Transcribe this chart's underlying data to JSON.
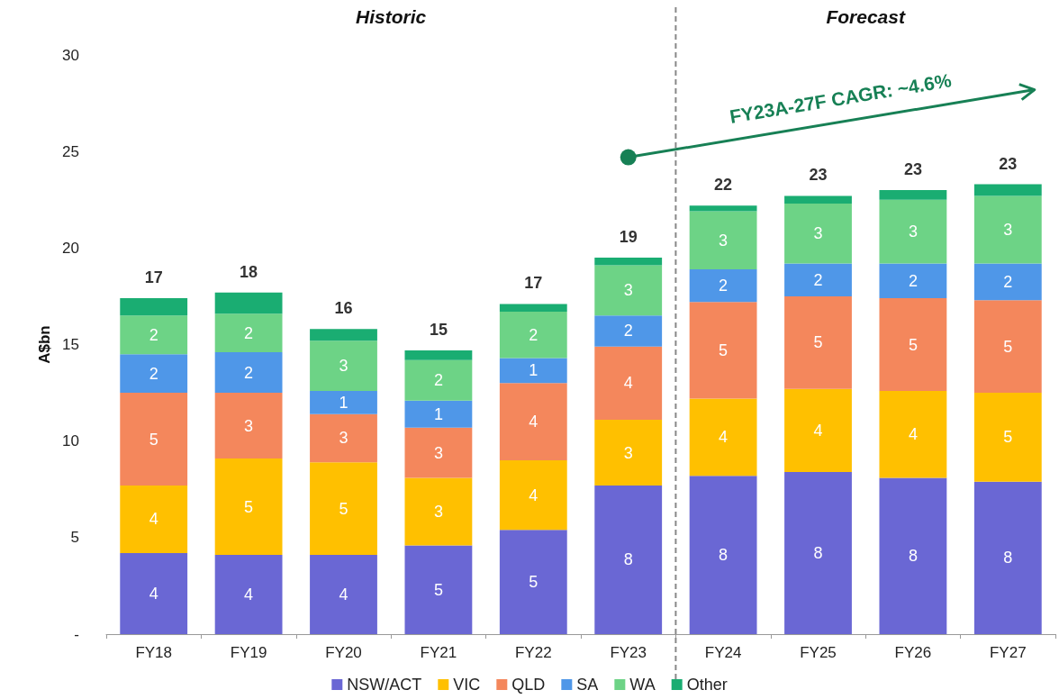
{
  "chart_data": {
    "type": "bar",
    "stacked": true,
    "ylabel": "A$bn",
    "categories": [
      "FY18",
      "FY19",
      "FY20",
      "FY21",
      "FY22",
      "FY23",
      "FY24",
      "FY25",
      "FY26",
      "FY27"
    ],
    "series": [
      {
        "name": "NSW/ACT",
        "color": "#6a67d4",
        "values": [
          4.2,
          4.1,
          4.1,
          4.6,
          5.4,
          7.7,
          8.2,
          8.4,
          8.1,
          7.9
        ],
        "value_labels": [
          "4",
          "4",
          "4",
          "5",
          "5",
          "8",
          "8",
          "8",
          "8",
          "8"
        ]
      },
      {
        "name": "VIC",
        "color": "#ffc000",
        "values": [
          3.5,
          5.0,
          4.8,
          3.5,
          3.6,
          3.4,
          4.0,
          4.3,
          4.5,
          4.6
        ],
        "value_labels": [
          "4",
          "5",
          "5",
          "3",
          "4",
          "3",
          "4",
          "4",
          "4",
          "5"
        ]
      },
      {
        "name": "QLD",
        "color": "#f4875c",
        "values": [
          4.8,
          3.4,
          2.5,
          2.6,
          4.0,
          3.8,
          5.0,
          4.8,
          4.8,
          4.8
        ],
        "value_labels": [
          "5",
          "3",
          "3",
          "3",
          "4",
          "4",
          "5",
          "5",
          "5",
          "5"
        ]
      },
      {
        "name": "SA",
        "color": "#4f97e8",
        "values": [
          2.0,
          2.1,
          1.2,
          1.4,
          1.3,
          1.6,
          1.7,
          1.7,
          1.8,
          1.9
        ],
        "value_labels": [
          "2",
          "2",
          "1",
          "1",
          "1",
          "2",
          "2",
          "2",
          "2",
          "2"
        ]
      },
      {
        "name": "WA",
        "color": "#6dd386",
        "values": [
          2.0,
          2.0,
          2.6,
          2.1,
          2.4,
          2.6,
          3.0,
          3.1,
          3.3,
          3.5
        ],
        "value_labels": [
          "2",
          "2",
          "3",
          "2",
          "2",
          "3",
          "3",
          "3",
          "3",
          "3"
        ]
      },
      {
        "name": "Other",
        "color": "#1aad72",
        "values": [
          0.9,
          1.1,
          0.6,
          0.5,
          0.4,
          0.4,
          0.3,
          0.4,
          0.5,
          0.6
        ]
      }
    ],
    "totals": [
      "17",
      "18",
      "16",
      "15",
      "17",
      "19",
      "22",
      "23",
      "23",
      "23"
    ],
    "ylim": [
      0,
      30
    ],
    "yticks": [
      {
        "value": 0,
        "label": "-"
      },
      5,
      10,
      15,
      20,
      25,
      30
    ],
    "grid": false,
    "legend": "bottom",
    "annotations": [
      "Historic",
      "Forecast",
      "FY23A-27F CAGR: ~4.6%"
    ]
  }
}
